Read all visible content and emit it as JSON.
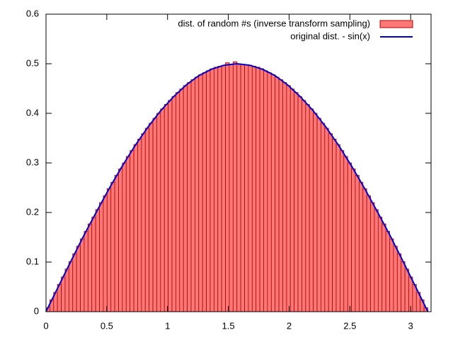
{
  "chart_data": {
    "type": "histogram",
    "xlim": [
      0,
      3.168
    ],
    "ylim": [
      0,
      0.6
    ],
    "xticks": [
      0,
      0.5,
      1,
      1.5,
      2,
      2.5,
      3
    ],
    "yticks": [
      0,
      0.1,
      0.2,
      0.3,
      0.4,
      0.5,
      0.6
    ],
    "grid": false,
    "legend": "top-right",
    "bins": [
      0,
      0.0314,
      0.0628,
      0.0942,
      0.1257,
      0.1571,
      0.1885,
      0.2199,
      0.2513,
      0.2827,
      0.3142,
      0.3456,
      0.377,
      0.4084,
      0.4398,
      0.4712,
      0.5027,
      0.5341,
      0.5655,
      0.5969,
      0.6283,
      0.6597,
      0.6912,
      0.7226,
      0.754,
      0.7854,
      0.8168,
      0.8482,
      0.8796,
      0.9111,
      0.9425,
      0.9739,
      1.0053,
      1.0367,
      1.0681,
      1.0996,
      1.131,
      1.1624,
      1.1938,
      1.2252,
      1.2566,
      1.2881,
      1.3195,
      1.3509,
      1.3823,
      1.4137,
      1.4451,
      1.4765,
      1.508,
      1.5394,
      1.5708,
      1.6022,
      1.6336,
      1.665,
      1.6965,
      1.7279,
      1.7593,
      1.7907,
      1.8221,
      1.8535,
      1.885,
      1.9164,
      1.9478,
      1.9792,
      2.0106,
      2.042,
      2.0735,
      2.1049,
      2.1363,
      2.1677,
      2.1991,
      2.2305,
      2.2619,
      2.2934,
      2.3248,
      2.3562,
      2.3876,
      2.419,
      2.4504,
      2.4819,
      2.5133,
      2.5447,
      2.5761,
      2.6075,
      2.6389,
      2.6704,
      2.7018,
      2.7332,
      2.7646,
      2.796,
      2.8274,
      2.8588,
      2.8903,
      2.9217,
      2.9531,
      2.9845,
      3.0159,
      3.0473,
      3.0788,
      3.1102,
      3.1416
    ],
    "series": [
      {
        "name": "dist. of random #s (inverse transform sampling)",
        "type": "histogram",
        "color": "#ff7878",
        "edgecolor": "#b00000",
        "values": [
          0.008,
          0.024,
          0.039,
          0.055,
          0.07,
          0.086,
          0.101,
          0.117,
          0.132,
          0.147,
          0.162,
          0.177,
          0.191,
          0.206,
          0.22,
          0.234,
          0.248,
          0.261,
          0.275,
          0.288,
          0.3,
          0.313,
          0.325,
          0.337,
          0.348,
          0.359,
          0.37,
          0.38,
          0.39,
          0.4,
          0.409,
          0.418,
          0.426,
          0.434,
          0.442,
          0.449,
          0.456,
          0.462,
          0.468,
          0.473,
          0.478,
          0.482,
          0.486,
          0.49,
          0.493,
          0.495,
          0.497,
          0.502,
          0.499,
          0.504,
          0.5,
          0.499,
          0.498,
          0.497,
          0.495,
          0.493,
          0.49,
          0.486,
          0.482,
          0.478,
          0.473,
          0.468,
          0.462,
          0.456,
          0.449,
          0.442,
          0.434,
          0.426,
          0.418,
          0.409,
          0.4,
          0.39,
          0.38,
          0.37,
          0.359,
          0.348,
          0.337,
          0.325,
          0.313,
          0.3,
          0.288,
          0.275,
          0.261,
          0.248,
          0.234,
          0.22,
          0.206,
          0.191,
          0.177,
          0.162,
          0.147,
          0.132,
          0.117,
          0.101,
          0.086,
          0.07,
          0.055,
          0.039,
          0.024,
          0.008
        ]
      },
      {
        "name": "original dist. - sin(x)",
        "type": "line",
        "color": "#0000cc",
        "x": [
          0,
          0.1047,
          0.2094,
          0.3142,
          0.4189,
          0.5236,
          0.6283,
          0.733,
          0.8378,
          0.9425,
          1.0472,
          1.1519,
          1.2566,
          1.3614,
          1.4661,
          1.5708,
          1.6755,
          1.7802,
          1.885,
          1.9897,
          2.0944,
          2.1991,
          2.3038,
          2.4086,
          2.5133,
          2.618,
          2.7227,
          2.8274,
          2.9322,
          3.0369,
          3.1416
        ],
        "values": [
          0,
          0.052,
          0.104,
          0.155,
          0.203,
          0.25,
          0.294,
          0.335,
          0.372,
          0.405,
          0.433,
          0.457,
          0.476,
          0.489,
          0.497,
          0.5,
          0.497,
          0.489,
          0.476,
          0.457,
          0.433,
          0.405,
          0.372,
          0.335,
          0.294,
          0.25,
          0.203,
          0.155,
          0.104,
          0.052,
          0
        ]
      }
    ]
  }
}
